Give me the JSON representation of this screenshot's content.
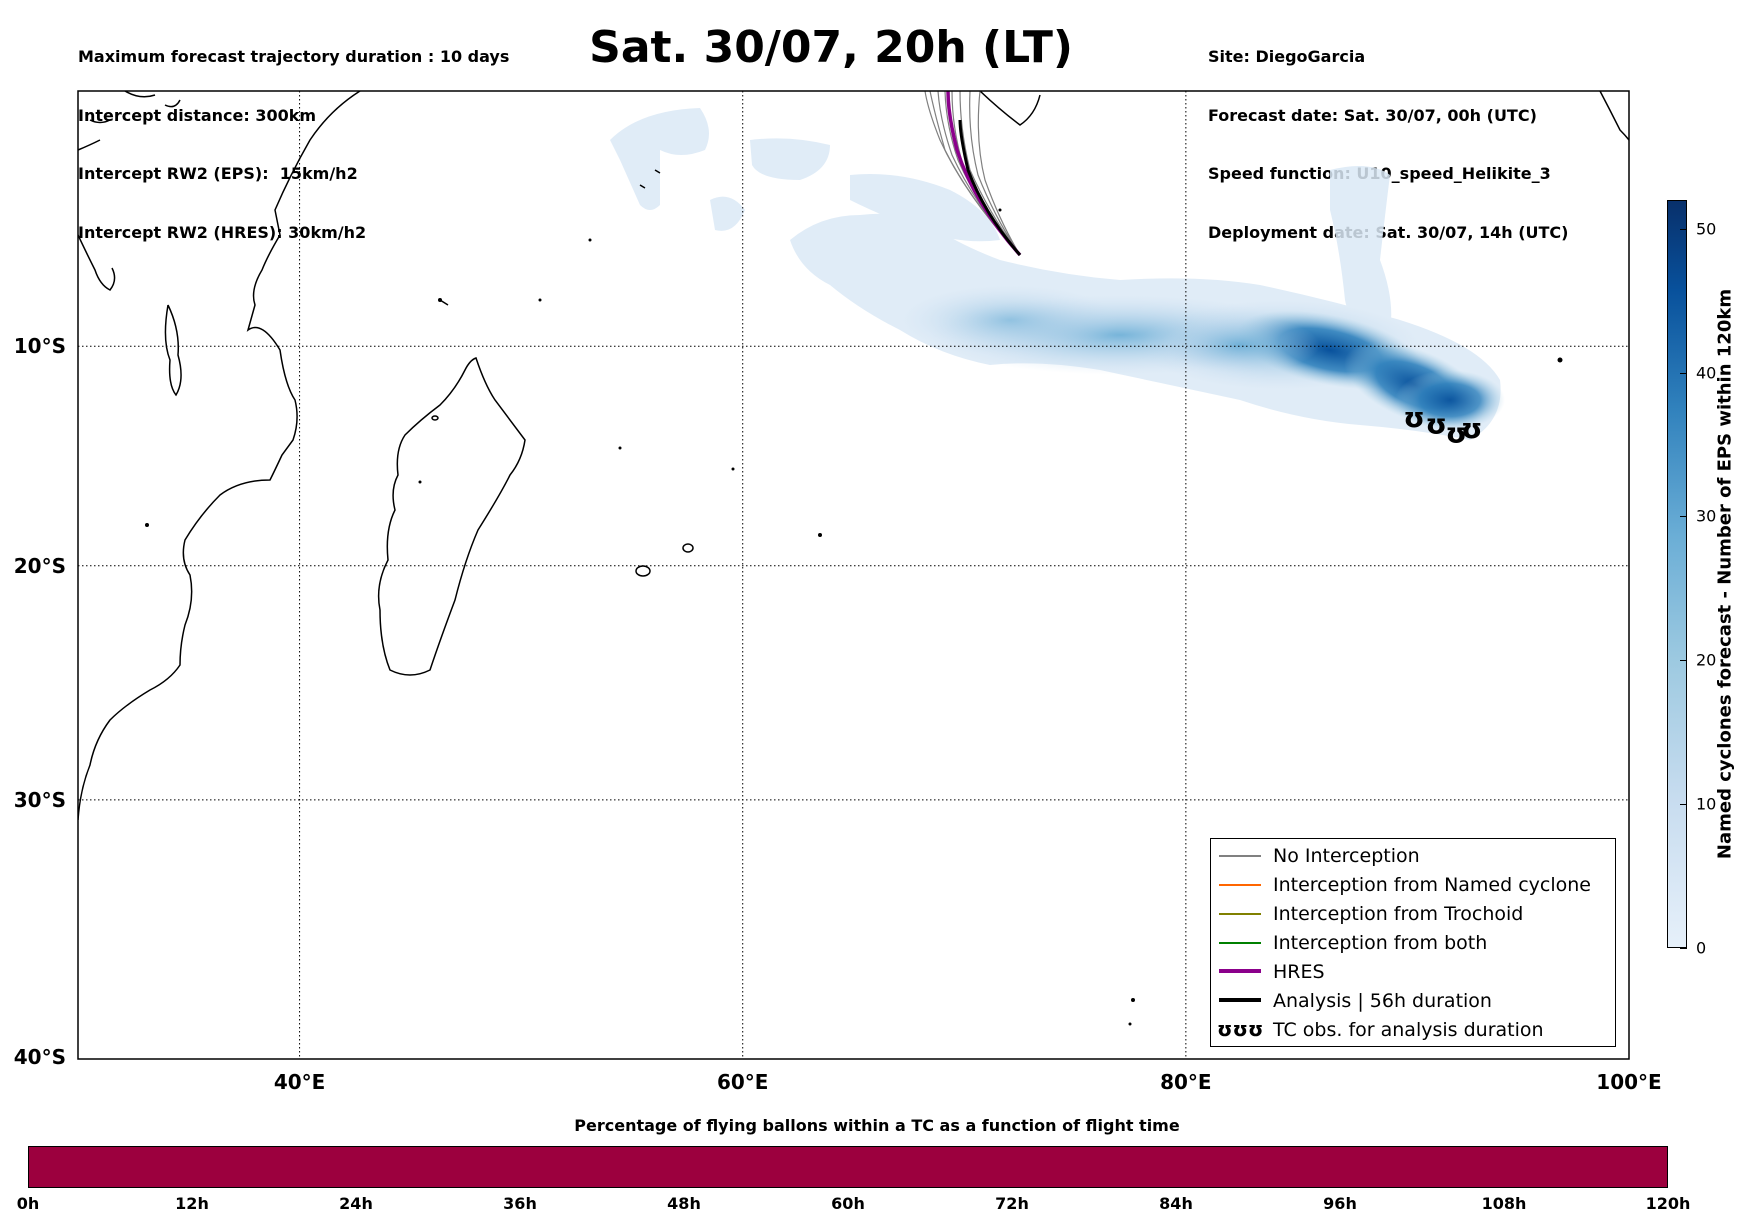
{
  "header_left": [
    "Maximum forecast trajectory duration : 10 days",
    "Intercept distance: 300km",
    "Intercept RW2 (EPS):  15km/h2",
    "Intercept RW2 (HRES): 30km/h2"
  ],
  "header_right": [
    "Site: DiegoGarcia",
    "Forecast date: Sat. 30/07, 00h (UTC)",
    "Speed function: U10_speed_Helikite_3",
    "Deployment date: Sat. 30/07, 14h (UTC)"
  ],
  "title": "Sat. 30/07, 20h (LT)",
  "map": {
    "lon_range": [
      30,
      100
    ],
    "lat_range": [
      -40,
      2
    ],
    "lat_ticks": [
      {
        "value": -10,
        "label": "10°S"
      },
      {
        "value": -20,
        "label": "20°S"
      },
      {
        "value": -30,
        "label": "30°S"
      },
      {
        "value": -40,
        "label": "40°S"
      }
    ],
    "lon_ticks": [
      {
        "value": 40,
        "label": "40°E"
      },
      {
        "value": 60,
        "label": "60°E"
      },
      {
        "value": 80,
        "label": "80°E"
      },
      {
        "value": 100,
        "label": "100°E"
      }
    ],
    "grid": true,
    "launch_site": {
      "lon": 72.4,
      "lat": -7.3
    },
    "tc_observations": [
      {
        "lon": 90.3,
        "lat": -13.3
      },
      {
        "lon": 91.3,
        "lat": -13.6
      },
      {
        "lon": 92.2,
        "lat": -14.0
      },
      {
        "lon": 92.9,
        "lat": -13.8
      }
    ]
  },
  "legend": {
    "items": [
      {
        "label": "No Interception",
        "color": "#808080",
        "style": "thin"
      },
      {
        "label": "Interception from Named cyclone",
        "color": "#ff6600",
        "style": "thin"
      },
      {
        "label": "Interception from Trochoid",
        "color": "#808000",
        "style": "thin"
      },
      {
        "label": "Interception from both",
        "color": "#008000",
        "style": "thin"
      },
      {
        "label": "HRES",
        "color": "#8b008b",
        "style": "thick"
      },
      {
        "label": "Analysis | 56h duration",
        "color": "#000000",
        "style": "thick"
      },
      {
        "label": "TC obs. for analysis duration",
        "symbol": "ʊʊʊ"
      }
    ]
  },
  "colorbar": {
    "title": "Named cyclones forecast - Number of EPS within 120km",
    "range": [
      0,
      52
    ],
    "ticks": [
      "0",
      "10",
      "20",
      "30",
      "40",
      "50"
    ],
    "tick_values": [
      0,
      10,
      20,
      30,
      40,
      50
    ]
  },
  "flight_bar": {
    "title": "Percentage of flying ballons within a TC as a function of flight time",
    "color": "#9c003e",
    "labels": [
      "0h",
      "12h",
      "24h",
      "36h",
      "48h",
      "60h",
      "72h",
      "84h",
      "96h",
      "108h",
      "120h"
    ]
  }
}
